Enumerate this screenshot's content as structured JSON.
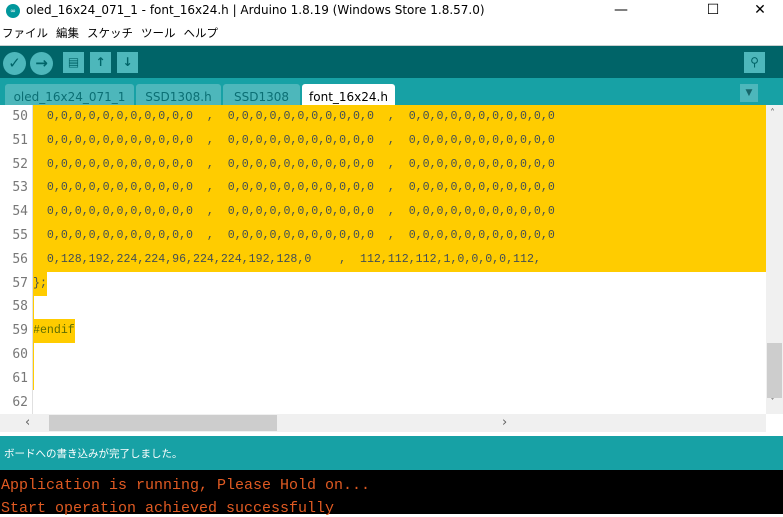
{
  "window": {
    "title": "oled_16x24_071_1 - font_16x24.h | Arduino 1.8.19 (Windows Store 1.8.57.0)",
    "minimize": "—",
    "maximize": "☐",
    "close": "✕"
  },
  "menu": [
    "ファイル",
    "編集",
    "スケッチ",
    "ツール",
    "ヘルプ"
  ],
  "toolbar": {
    "verify": "✓",
    "upload": "→",
    "new": "▤",
    "open": "↑",
    "save": "↓",
    "serial_monitor": "⚲"
  },
  "tabs": [
    {
      "label": "oled_16x24_071_1"
    },
    {
      "label": "SSD1308.h"
    },
    {
      "label": "SSD1308"
    },
    {
      "label": "font_16x24.h",
      "active": true
    }
  ],
  "tab_menu": "▼",
  "editor": {
    "lines": [
      {
        "n": "50",
        "text": "  0,0,0,0,0,0,0,0,0,0,0  ,  0,0,0,0,0,0,0,0,0,0,0  ,  0,0,0,0,0,0,0,0,0,0,0"
      },
      {
        "n": "51",
        "text": "  0,0,0,0,0,0,0,0,0,0,0  ,  0,0,0,0,0,0,0,0,0,0,0  ,  0,0,0,0,0,0,0,0,0,0,0"
      },
      {
        "n": "52",
        "text": "  0,0,0,0,0,0,0,0,0,0,0  ,  0,0,0,0,0,0,0,0,0,0,0  ,  0,0,0,0,0,0,0,0,0,0,0"
      },
      {
        "n": "53",
        "text": "  0,0,0,0,0,0,0,0,0,0,0  ,  0,0,0,0,0,0,0,0,0,0,0  ,  0,0,0,0,0,0,0,0,0,0,0"
      },
      {
        "n": "54",
        "text": "  0,0,0,0,0,0,0,0,0,0,0  ,  0,0,0,0,0,0,0,0,0,0,0  ,  0,0,0,0,0,0,0,0,0,0,0"
      },
      {
        "n": "55",
        "text": "  0,0,0,0,0,0,0,0,0,0,0  ,  0,0,0,0,0,0,0,0,0,0,0  ,  0,0,0,0,0,0,0,0,0,0,0"
      },
      {
        "n": "56",
        "text": "  0,128,192,224,224,96,224,224,192,128,0    ,  112,112,112,1,0,0,0,0,112,"
      },
      {
        "n": "57",
        "text": "};"
      },
      {
        "n": "58",
        "text": ""
      },
      {
        "n": "59",
        "text": "#endif"
      },
      {
        "n": "60",
        "text": ""
      },
      {
        "n": "61",
        "text": ""
      },
      {
        "n": "62",
        "text": ""
      }
    ]
  },
  "scroll": {
    "up": "˄",
    "down": "˅",
    "left": "‹",
    "right": "›"
  },
  "status": "ボードへの書き込みが完了しました。",
  "console": [
    "Application is running, Please Hold on...",
    "Start operation achieved successfully"
  ],
  "colors": {
    "toolbar": "#006468",
    "tabs": "#17a1a5",
    "highlight": "#ffcc00",
    "console_text": "#e05a22"
  }
}
